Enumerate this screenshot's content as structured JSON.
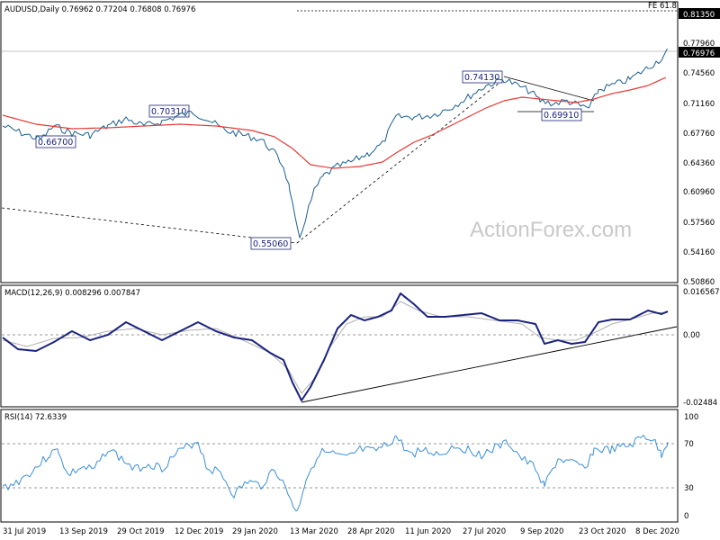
{
  "chart_data": [
    {
      "type": "line",
      "title": "AUDUSD,Daily  0.76962 0.77204 0.76808 0.76976",
      "watermark": "ActionForex.com",
      "ylim": [
        0.5068,
        0.833
      ],
      "y_ticks": [
        "0.81350",
        "0.77960",
        "0.74560",
        "0.71160",
        "0.67760",
        "0.64360",
        "0.60960",
        "0.57560",
        "0.54160",
        "0.50860"
      ],
      "current_price": "0.76976",
      "fib_label": "FE 61.8",
      "x_ticks": [
        "31 Jul 2019",
        "13 Sep 2019",
        "29 Oct 2019",
        "12 Dec 2019",
        "29 Jan 2020",
        "13 Mar 2020",
        "28 Apr 2020",
        "11 Jun 2020",
        "27 Jul 2020",
        "9 Sep 2020",
        "23 Oct 2020",
        "8 Dec 2020"
      ],
      "annotations": [
        "0.66700",
        "0.70310",
        "0.55060",
        "0.74130",
        "0.69910"
      ],
      "price_series": [
        {
          "x": "31 Jul 2019",
          "y": 0.6874
        },
        {
          "x": "13 Sep 2019",
          "y": 0.687
        },
        {
          "x": "29 Oct 2019",
          "y": 0.689
        },
        {
          "x": "12 Dec 2019",
          "y": 0.6955
        },
        {
          "x": "29 Jan 2020",
          "y": 0.674
        },
        {
          "x": "13 Mar 2020",
          "y": 0.627
        },
        {
          "x": "28 Apr 2020",
          "y": 0.65
        },
        {
          "x": "11 Jun 2020",
          "y": 0.69
        },
        {
          "x": "27 Jul 2020",
          "y": 0.715
        },
        {
          "x": "9 Sep 2020",
          "y": 0.725
        },
        {
          "x": "23 Oct 2020",
          "y": 0.713
        },
        {
          "x": "8 Dec 2020",
          "y": 0.748
        }
      ],
      "sma_series_color": "#e53935",
      "price_color": "#1b5e8c"
    },
    {
      "type": "line",
      "title": "MACD(12,26,9) 0.008296 0.007847",
      "y_ticks": [
        "0.016567",
        "0.00",
        "-0.02484"
      ],
      "macd_color": "#1a237e",
      "signal_color": "#b0b0b0"
    },
    {
      "type": "line",
      "title": "RSI(14) 72.6339",
      "ylim": [
        0,
        100
      ],
      "y_ticks": [
        "100",
        "70",
        "30",
        "0"
      ],
      "rsi_color": "#3a8fd9"
    }
  ]
}
